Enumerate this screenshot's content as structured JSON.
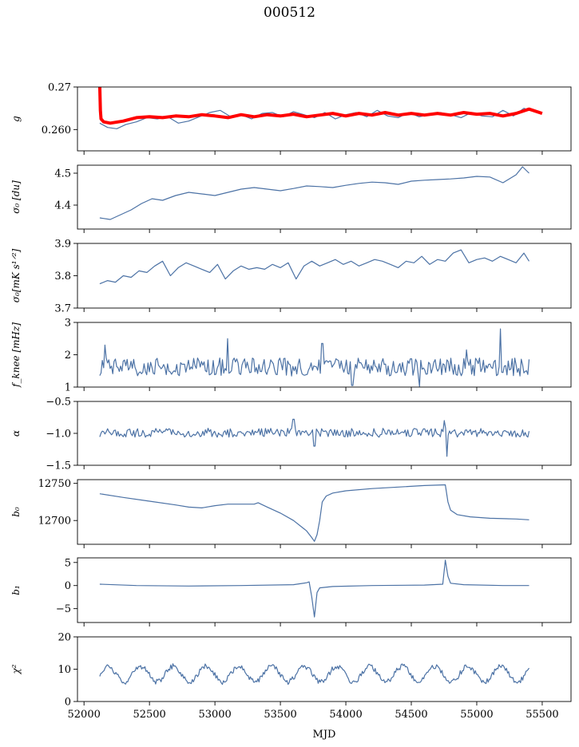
{
  "figure": {
    "title": "000512",
    "xlabel": "MJD"
  },
  "colors": {
    "series": "#4c72a5",
    "fit": "#ff0000",
    "axes": "#000000"
  },
  "chart_data": [
    {
      "type": "line",
      "id": "g",
      "ylabel": "g",
      "xlim": [
        51950,
        55720
      ],
      "ylim": [
        0.255,
        0.27
      ],
      "yticks": [
        0.26,
        0.27
      ],
      "ytick_labels": [
        "0.260",
        "0.27"
      ],
      "series": [
        {
          "name": "g",
          "color": "#4c72a5",
          "x": [
            52120,
            52180,
            52250,
            52320,
            52400,
            52480,
            52560,
            52640,
            52720,
            52800,
            52880,
            52960,
            53040,
            53120,
            53200,
            53280,
            53360,
            53440,
            53520,
            53600,
            53680,
            53760,
            53840,
            53920,
            54000,
            54080,
            54160,
            54240,
            54320,
            54400,
            54480,
            54560,
            54640,
            54720,
            54800,
            54880,
            54960,
            55040,
            55120,
            55200,
            55280,
            55360,
            55400
          ],
          "y": [
            0.2615,
            0.2605,
            0.2602,
            0.2612,
            0.2618,
            0.2628,
            0.2625,
            0.263,
            0.2615,
            0.262,
            0.263,
            0.264,
            0.2645,
            0.263,
            0.2635,
            0.2625,
            0.2638,
            0.264,
            0.263,
            0.2642,
            0.2635,
            0.2628,
            0.264,
            0.2625,
            0.2635,
            0.264,
            0.263,
            0.2645,
            0.2632,
            0.2628,
            0.264,
            0.263,
            0.2635,
            0.264,
            0.2635,
            0.2628,
            0.264,
            0.2632,
            0.263,
            0.2645,
            0.2632,
            0.265,
            0.2645
          ]
        },
        {
          "name": "fit",
          "color": "#ff0000",
          "x": [
            52120,
            52125,
            52130,
            52150,
            52200,
            52300,
            52400,
            52500,
            52600,
            52700,
            52800,
            52900,
            53000,
            53100,
            53200,
            53300,
            53400,
            53500,
            53600,
            53700,
            53800,
            53900,
            54000,
            54100,
            54200,
            54300,
            54400,
            54500,
            54600,
            54700,
            54800,
            54900,
            55000,
            55100,
            55200,
            55300,
            55400,
            55500
          ],
          "y": [
            0.2705,
            0.2645,
            0.2625,
            0.2618,
            0.2615,
            0.262,
            0.2628,
            0.263,
            0.2628,
            0.2632,
            0.263,
            0.2635,
            0.2632,
            0.2628,
            0.2635,
            0.263,
            0.2635,
            0.2632,
            0.2636,
            0.263,
            0.2634,
            0.2638,
            0.2632,
            0.2638,
            0.2634,
            0.264,
            0.2634,
            0.2638,
            0.2634,
            0.2638,
            0.2634,
            0.264,
            0.2636,
            0.2638,
            0.2632,
            0.2638,
            0.2648,
            0.2638
          ]
        }
      ]
    },
    {
      "type": "line",
      "id": "sigma_du",
      "ylabel": "σ₀ [du]",
      "xlim": [
        51950,
        55720
      ],
      "ylim": [
        4.325,
        4.525
      ],
      "yticks": [
        4.4,
        4.5
      ],
      "ytick_labels": [
        "4.4",
        "4.5"
      ],
      "series": [
        {
          "name": "sigma0_du",
          "color": "#4c72a5",
          "x": [
            52120,
            52200,
            52280,
            52360,
            52440,
            52520,
            52600,
            52700,
            52800,
            52900,
            53000,
            53100,
            53200,
            53300,
            53400,
            53500,
            53600,
            53700,
            53800,
            53900,
            54000,
            54100,
            54200,
            54300,
            54400,
            54500,
            54600,
            54700,
            54800,
            54900,
            55000,
            55100,
            55200,
            55300,
            55350,
            55400
          ],
          "y": [
            4.36,
            4.355,
            4.37,
            4.385,
            4.405,
            4.42,
            4.415,
            4.43,
            4.44,
            4.435,
            4.43,
            4.44,
            4.45,
            4.455,
            4.45,
            4.445,
            4.452,
            4.46,
            4.458,
            4.455,
            4.462,
            4.468,
            4.472,
            4.47,
            4.465,
            4.475,
            4.478,
            4.48,
            4.482,
            4.485,
            4.49,
            4.488,
            4.47,
            4.495,
            4.52,
            4.5
          ]
        }
      ]
    },
    {
      "type": "line",
      "id": "sigma_mk",
      "ylabel": "σ₀[mK s¹ᐟ²]",
      "xlim": [
        51950,
        55720
      ],
      "ylim": [
        3.7,
        3.9
      ],
      "yticks": [
        3.7,
        3.8,
        3.9
      ],
      "ytick_labels": [
        "3.7",
        "3.8",
        "3.9"
      ],
      "series": [
        {
          "name": "sigma0_mK",
          "color": "#4c72a5",
          "x": [
            52120,
            52180,
            52240,
            52300,
            52360,
            52420,
            52480,
            52540,
            52600,
            52660,
            52720,
            52780,
            52840,
            52900,
            52960,
            53020,
            53080,
            53140,
            53200,
            53260,
            53320,
            53380,
            53440,
            53500,
            53560,
            53620,
            53680,
            53740,
            53800,
            53860,
            53920,
            53980,
            54040,
            54100,
            54160,
            54220,
            54280,
            54340,
            54400,
            54460,
            54520,
            54580,
            54640,
            54700,
            54760,
            54820,
            54880,
            54940,
            55000,
            55060,
            55120,
            55180,
            55240,
            55300,
            55360,
            55400
          ],
          "y": [
            3.775,
            3.785,
            3.78,
            3.8,
            3.795,
            3.815,
            3.81,
            3.83,
            3.845,
            3.8,
            3.825,
            3.84,
            3.83,
            3.82,
            3.81,
            3.835,
            3.79,
            3.815,
            3.83,
            3.82,
            3.825,
            3.82,
            3.835,
            3.825,
            3.84,
            3.79,
            3.83,
            3.845,
            3.83,
            3.84,
            3.85,
            3.835,
            3.845,
            3.83,
            3.84,
            3.85,
            3.845,
            3.835,
            3.825,
            3.845,
            3.84,
            3.86,
            3.835,
            3.85,
            3.845,
            3.87,
            3.88,
            3.84,
            3.85,
            3.855,
            3.845,
            3.86,
            3.85,
            3.84,
            3.87,
            3.845
          ]
        }
      ]
    },
    {
      "type": "line",
      "id": "fknee",
      "ylabel": "f_knee [mHz]",
      "xlim": [
        51950,
        55720
      ],
      "ylim": [
        1,
        3
      ],
      "yticks": [
        1,
        2,
        3
      ],
      "ytick_labels": [
        "1",
        "2",
        "3"
      ],
      "series": [
        {
          "name": "fknee",
          "color": "#4c72a5",
          "mean": 1.62,
          "noise_amplitude": 0.28,
          "x_start": 52120,
          "x_end": 55400,
          "n_points": 330,
          "spikes": [
            {
              "x": 52160,
              "y": 2.3
            },
            {
              "x": 53100,
              "y": 2.5
            },
            {
              "x": 53820,
              "y": 2.35
            },
            {
              "x": 54920,
              "y": 2.15
            },
            {
              "x": 55180,
              "y": 2.8
            }
          ],
          "dips": [
            {
              "x": 54050,
              "y": 1.05
            },
            {
              "x": 54560,
              "y": 1.02
            }
          ]
        }
      ]
    },
    {
      "type": "line",
      "id": "alpha",
      "ylabel": "α",
      "xlim": [
        51950,
        55720
      ],
      "ylim": [
        -1.5,
        -0.5
      ],
      "yticks": [
        -1.5,
        -1.0,
        -0.5
      ],
      "ytick_labels": [
        "−1.5",
        "−1.0",
        "−0.5"
      ],
      "series": [
        {
          "name": "alpha",
          "color": "#4c72a5",
          "mean": -0.99,
          "noise_amplitude": 0.07,
          "x_start": 52120,
          "x_end": 55400,
          "n_points": 330,
          "spikes": [
            {
              "x": 53600,
              "y": -0.78
            },
            {
              "x": 54750,
              "y": -0.8
            }
          ],
          "dips": [
            {
              "x": 54770,
              "y": -1.36
            },
            {
              "x": 53760,
              "y": -1.2
            }
          ]
        }
      ]
    },
    {
      "type": "line",
      "id": "b0",
      "ylabel": "b₀",
      "xlim": [
        51950,
        55720
      ],
      "ylim": [
        12668,
        12755
      ],
      "yticks": [
        12700,
        12750
      ],
      "ytick_labels": [
        "12700",
        "12750"
      ],
      "series": [
        {
          "name": "b0",
          "color": "#4c72a5",
          "x": [
            52120,
            52300,
            52500,
            52700,
            52800,
            52900,
            53000,
            53100,
            53200,
            53300,
            53330,
            53400,
            53500,
            53600,
            53700,
            53740,
            53760,
            53780,
            53800,
            53820,
            53850,
            53900,
            54000,
            54200,
            54400,
            54600,
            54760,
            54780,
            54800,
            54850,
            54950,
            55100,
            55300,
            55400
          ],
          "y": [
            12736,
            12731,
            12726,
            12721,
            12718,
            12717,
            12720,
            12722,
            12722,
            12722,
            12724,
            12718,
            12710,
            12700,
            12686,
            12677,
            12672,
            12681,
            12700,
            12725,
            12733,
            12737,
            12740,
            12743,
            12745,
            12747,
            12748,
            12725,
            12714,
            12708,
            12705,
            12703,
            12702,
            12701
          ]
        }
      ]
    },
    {
      "type": "line",
      "id": "b1",
      "ylabel": "b₁",
      "xlim": [
        51950,
        55720
      ],
      "ylim": [
        -8,
        6
      ],
      "yticks": [
        -5,
        0,
        5
      ],
      "ytick_labels": [
        "−5",
        "0",
        "5"
      ],
      "series": [
        {
          "name": "b1",
          "color": "#4c72a5",
          "x": [
            52120,
            52400,
            52800,
            53200,
            53600,
            53700,
            53720,
            53740,
            53760,
            53780,
            53800,
            53900,
            54200,
            54600,
            54740,
            54760,
            54780,
            54800,
            54900,
            55200,
            55400
          ],
          "y": [
            0.3,
            0.0,
            -0.1,
            0.0,
            0.2,
            0.6,
            0.8,
            -2.5,
            -6.8,
            -1.5,
            -0.5,
            -0.2,
            0.0,
            0.1,
            0.3,
            5.5,
            2.0,
            0.5,
            0.2,
            0.0,
            0.0
          ]
        }
      ]
    },
    {
      "type": "line",
      "id": "chi2",
      "ylabel": "χ²",
      "xlim": [
        51950,
        55720
      ],
      "ylim": [
        0,
        20
      ],
      "yticks": [
        0,
        10,
        20
      ],
      "ytick_labels": [
        "0",
        "10",
        "20"
      ],
      "series": [
        {
          "name": "chi2",
          "color": "#4c72a5",
          "x_start": 52120,
          "x_end": 55400,
          "n_points": 400,
          "mean": 8.5,
          "oscillation_amplitude": 2.4,
          "oscillation_period": 250,
          "noise_amplitude": 0.8
        }
      ]
    }
  ],
  "shared_x_axis": {
    "ticks": [
      52000,
      52500,
      53000,
      53500,
      54000,
      54500,
      55000,
      55500
    ],
    "tick_labels": [
      "52000",
      "52500",
      "53000",
      "53500",
      "54000",
      "54500",
      "55000",
      "55500"
    ]
  }
}
